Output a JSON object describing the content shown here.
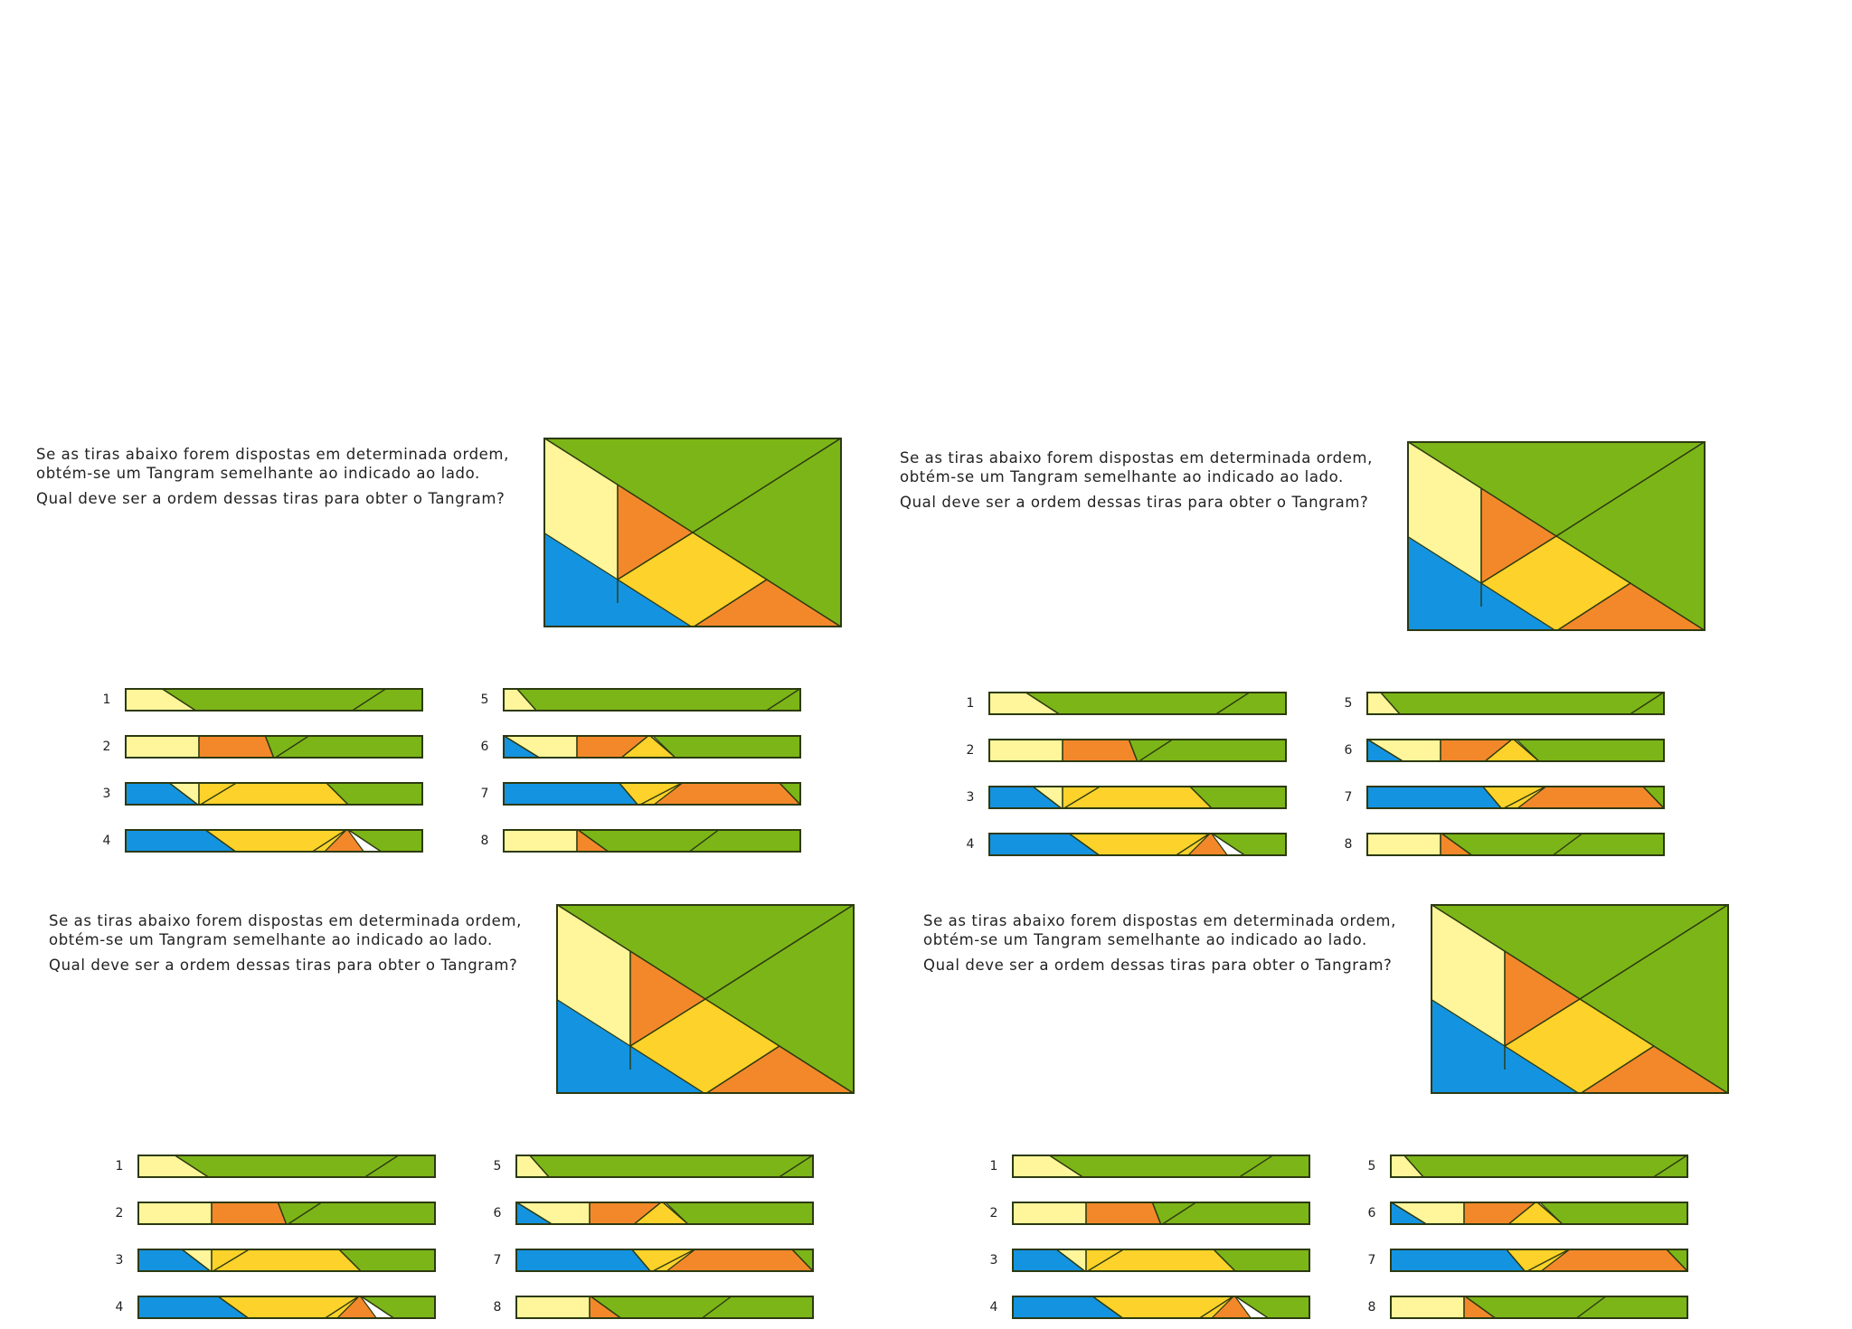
{
  "worksheet": {
    "intro_text": "Se as tiras abaixo forem dispostas em determinada ordem, obtém-se um Tangram semelhante ao indicado ao lado.",
    "question_text": "Qual deve ser a ordem dessas tiras para obter o Tangram?",
    "strip_labels": [
      "1",
      "2",
      "3",
      "4",
      "5",
      "6",
      "7",
      "8"
    ]
  },
  "colors": {
    "green": "#7cb518",
    "light_yellow": "#fff59a",
    "yellow": "#fcd22b",
    "orange": "#f3882b",
    "blue": "#1493e1",
    "outline": "#2c3a10"
  }
}
